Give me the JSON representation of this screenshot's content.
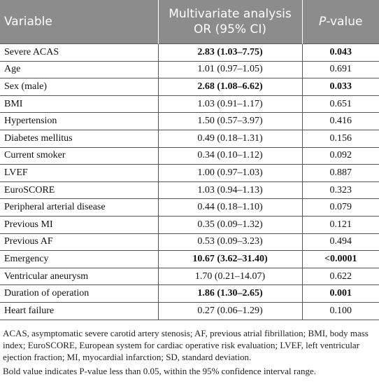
{
  "table": {
    "header": {
      "variable": "Variable",
      "analysis": [
        "Multivariate analysis",
        "OR (95% CI)"
      ],
      "p_value": {
        "italic": "P",
        "rest": "-value"
      }
    },
    "rows": [
      {
        "cells": [
          "Severe ACAS",
          "2.83 (1.03–7.75)",
          "0.043"
        ],
        "bold": true
      },
      {
        "cells": [
          "Age",
          "1.01 (0.97–1.05)",
          "0.691"
        ],
        "bold": false
      },
      {
        "cells": [
          "Sex (male)",
          "2.68 (1.08–6.62)",
          "0.033"
        ],
        "bold": true
      },
      {
        "cells": [
          "BMI",
          "1.03 (0.91–1.17)",
          "0.651"
        ],
        "bold": false
      },
      {
        "cells": [
          "Hypertension",
          "1.50 (0.57–3.97)",
          "0.416"
        ],
        "bold": false
      },
      {
        "cells": [
          "Diabetes mellitus",
          "0.49 (0.18–1.31)",
          "0.156"
        ],
        "bold": false
      },
      {
        "cells": [
          "Current smoker",
          "0.34 (0.10–1.12)",
          "0.092"
        ],
        "bold": false
      },
      {
        "cells": [
          "LVEF",
          "1.00 (0.97–1.03)",
          "0.887"
        ],
        "bold": false
      },
      {
        "cells": [
          "EuroSCORE",
          "1.03 (0.94–1.13)",
          "0.323"
        ],
        "bold": false
      },
      {
        "cells": [
          "Peripheral arterial disease",
          "0.44 (0.18–1.10)",
          "0.079"
        ],
        "bold": false
      },
      {
        "cells": [
          "Previous MI",
          "0.35 (0.09–1.32)",
          "0.121"
        ],
        "bold": false
      },
      {
        "cells": [
          "Previous AF",
          "0.53 (0.09–3.23)",
          "0.494"
        ],
        "bold": false
      },
      {
        "cells": [
          "Emergency",
          "10.67 (3.62–31.40)",
          "<0.0001"
        ],
        "bold": true
      },
      {
        "cells": [
          "Ventricular aneurysm",
          "1.70 (0.21–14.07)",
          "0.622"
        ],
        "bold": false
      },
      {
        "cells": [
          "Duration of operation",
          "1.86 (1.30–2.65)",
          "0.001"
        ],
        "bold": true
      },
      {
        "cells": [
          "Heart failure",
          "0.27 (0.06–1.29)",
          "0.100"
        ],
        "bold": false
      }
    ]
  },
  "footnotes": [
    "ACAS, asymptomatic severe carotid artery stenosis; AF, previous atrial fibrillation; BMI, body mass index; EuroSCORE, European system for cardiac operative risk evaluation; LVEF, left ventricular ejection fraction; MI, myocardial infarction; SD, standard deviation.",
    "Bold value indicates P-value less than 0.05, within the 95% confidence interval range."
  ]
}
